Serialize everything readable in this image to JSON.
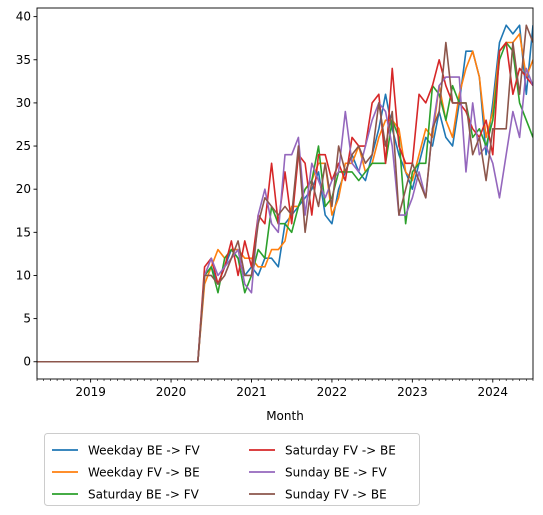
{
  "chart_data": {
    "type": "line",
    "title": "",
    "xlabel": "Month",
    "ylabel": "",
    "xlim": [
      "2018-05",
      "2024-07"
    ],
    "ylim": [
      -2,
      41
    ],
    "xticks": [
      "2019",
      "2020",
      "2021",
      "2022",
      "2023",
      "2024"
    ],
    "yticks": [
      0,
      5,
      10,
      15,
      20,
      25,
      30,
      35,
      40
    ],
    "grid": false,
    "legend_position": "below-left",
    "legend_columns": 2,
    "x": [
      "2018-05",
      "2018-06",
      "2018-07",
      "2018-08",
      "2018-09",
      "2018-10",
      "2018-11",
      "2018-12",
      "2019-01",
      "2019-02",
      "2019-03",
      "2019-04",
      "2019-05",
      "2019-06",
      "2019-07",
      "2019-08",
      "2019-09",
      "2019-10",
      "2019-11",
      "2019-12",
      "2020-01",
      "2020-02",
      "2020-03",
      "2020-04",
      "2020-05",
      "2020-06",
      "2020-07",
      "2020-08",
      "2020-09",
      "2020-10",
      "2020-11",
      "2020-12",
      "2021-01",
      "2021-02",
      "2021-03",
      "2021-04",
      "2021-05",
      "2021-06",
      "2021-07",
      "2021-08",
      "2021-09",
      "2021-10",
      "2021-11",
      "2021-12",
      "2022-01",
      "2022-02",
      "2022-03",
      "2022-04",
      "2022-05",
      "2022-06",
      "2022-07",
      "2022-08",
      "2022-09",
      "2022-10",
      "2022-11",
      "2022-12",
      "2023-01",
      "2023-02",
      "2023-03",
      "2023-04",
      "2023-05",
      "2023-06",
      "2023-07",
      "2023-08",
      "2023-09",
      "2023-10",
      "2023-11",
      "2023-12",
      "2024-01",
      "2024-02",
      "2024-03",
      "2024-04",
      "2024-05",
      "2024-06",
      "2024-07"
    ],
    "series": [
      {
        "name": "Weekday BE -> FV",
        "color": "#1f77b4",
        "values": [
          0,
          0,
          0,
          0,
          0,
          0,
          0,
          0,
          0,
          0,
          0,
          0,
          0,
          0,
          0,
          0,
          0,
          0,
          0,
          0,
          0,
          0,
          0,
          0,
          0,
          10,
          11,
          9,
          11,
          13,
          12,
          10,
          11,
          10,
          12,
          12,
          11,
          16,
          17,
          18,
          19,
          20,
          22,
          17,
          16,
          20,
          22,
          24,
          22,
          21,
          24,
          27,
          31,
          27,
          24,
          22,
          20,
          23,
          26,
          25,
          29,
          26,
          25,
          30,
          36,
          36,
          33,
          24,
          30,
          37,
          39,
          38,
          39,
          31,
          39
        ]
      },
      {
        "name": "Weekday FV -> BE",
        "color": "#ff7f0e",
        "values": [
          0,
          0,
          0,
          0,
          0,
          0,
          0,
          0,
          0,
          0,
          0,
          0,
          0,
          0,
          0,
          0,
          0,
          0,
          0,
          0,
          0,
          0,
          0,
          0,
          0,
          9,
          11,
          13,
          12,
          13,
          13,
          12,
          12,
          11,
          11,
          13,
          13,
          14,
          18,
          18,
          20,
          21,
          23,
          23,
          17,
          19,
          23,
          23,
          25,
          22,
          23,
          26,
          28,
          28,
          27,
          22,
          21,
          24,
          27,
          26,
          32,
          28,
          26,
          31,
          34,
          36,
          33,
          26,
          29,
          36,
          37,
          37,
          38,
          33,
          35
        ]
      },
      {
        "name": "Saturday BE -> FV",
        "color": "#2ca02c",
        "values": [
          0,
          0,
          0,
          0,
          0,
          0,
          0,
          0,
          0,
          0,
          0,
          0,
          0,
          0,
          0,
          0,
          0,
          0,
          0,
          0,
          0,
          0,
          0,
          0,
          0,
          10,
          11,
          8,
          12,
          13,
          12,
          8,
          10,
          13,
          12,
          18,
          16,
          16,
          15,
          18,
          20,
          21,
          25,
          18,
          19,
          22,
          22,
          22,
          21,
          22,
          23,
          23,
          23,
          28,
          26,
          16,
          22,
          23,
          23,
          32,
          31,
          28,
          32,
          30,
          30,
          26,
          27,
          25,
          28,
          35,
          37,
          36,
          30,
          28,
          26
        ]
      },
      {
        "name": "Saturday FV -> BE",
        "color": "#d62728",
        "values": [
          0,
          0,
          0,
          0,
          0,
          0,
          0,
          0,
          0,
          0,
          0,
          0,
          0,
          0,
          0,
          0,
          0,
          0,
          0,
          0,
          0,
          0,
          0,
          0,
          0,
          11,
          12,
          9,
          11,
          14,
          10,
          14,
          11,
          17,
          16,
          23,
          16,
          22,
          16,
          24,
          23,
          17,
          24,
          24,
          21,
          23,
          21,
          26,
          25,
          25,
          30,
          31,
          23,
          34,
          25,
          23,
          23,
          31,
          30,
          32,
          35,
          32,
          30,
          30,
          29,
          27,
          26,
          28,
          24,
          36,
          37,
          31,
          34,
          33,
          32
        ]
      },
      {
        "name": "Sunday BE -> FV",
        "color": "#9467bd",
        "values": [
          0,
          0,
          0,
          0,
          0,
          0,
          0,
          0,
          0,
          0,
          0,
          0,
          0,
          0,
          0,
          0,
          0,
          0,
          0,
          0,
          0,
          0,
          0,
          0,
          0,
          10,
          12,
          10,
          11,
          12,
          13,
          9,
          8,
          17,
          20,
          16,
          15,
          24,
          24,
          26,
          17,
          23,
          21,
          19,
          21,
          22,
          29,
          23,
          22,
          25,
          28,
          30,
          29,
          25,
          17,
          17,
          19,
          22,
          19,
          27,
          32,
          33,
          33,
          33,
          22,
          30,
          24,
          25,
          23,
          19,
          24,
          29,
          26,
          34,
          32
        ]
      },
      {
        "name": "Sunday FV -> BE",
        "color": "#8c564b",
        "values": [
          0,
          0,
          0,
          0,
          0,
          0,
          0,
          0,
          0,
          0,
          0,
          0,
          0,
          0,
          0,
          0,
          0,
          0,
          0,
          0,
          0,
          0,
          0,
          0,
          0,
          10,
          10,
          9,
          10,
          12,
          14,
          10,
          10,
          16,
          19,
          18,
          17,
          18,
          17,
          25,
          15,
          21,
          18,
          23,
          18,
          25,
          22,
          24,
          25,
          23,
          24,
          30,
          25,
          29,
          17,
          20,
          23,
          21,
          19,
          27,
          29,
          37,
          30,
          30,
          30,
          24,
          26,
          21,
          27,
          27,
          27,
          37,
          31,
          39,
          37
        ]
      }
    ]
  }
}
